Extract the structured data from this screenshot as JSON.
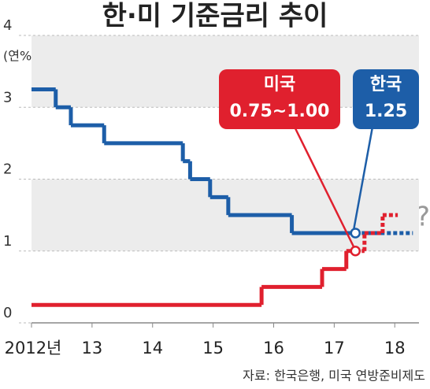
{
  "chart_data": {
    "type": "step",
    "title": "한·미 기준금리 추이",
    "y_unit": "(연%)",
    "source": "자료: 한국은행, 미국 연방준비제도",
    "annotation": "?",
    "xlim": [
      2012,
      2018.4
    ],
    "xticks": [
      {
        "value": 2012,
        "label": "2012년"
      },
      {
        "value": 2013,
        "label": "13"
      },
      {
        "value": 2014,
        "label": "14"
      },
      {
        "value": 2015,
        "label": "15"
      },
      {
        "value": 2016,
        "label": "16"
      },
      {
        "value": 2017,
        "label": "17"
      },
      {
        "value": 2018,
        "label": "18"
      }
    ],
    "ylim": [
      0,
      4
    ],
    "yticks": [
      0,
      1,
      2,
      3,
      4
    ],
    "grid": true,
    "series": [
      {
        "name": "한국",
        "color": "#1d5ea8",
        "callout": "1.25",
        "x": [
          2012,
          2012.4,
          2012.65,
          2013.2,
          2014.5,
          2014.62,
          2014.95,
          2015.25,
          2016.3,
          2017.35
        ],
        "values": [
          3.25,
          3,
          2.75,
          2.5,
          2.25,
          2,
          1.75,
          1.5,
          1.25,
          1.25
        ],
        "forecast_x": [
          2017.35,
          2018.3
        ],
        "forecast_values": [
          1.25,
          1.25
        ]
      },
      {
        "name": "미국",
        "color": "#e0202e",
        "callout": "0.75~1.00",
        "x": [
          2012,
          2015.8,
          2016.8,
          2017.2,
          2017.35
        ],
        "values": [
          0.25,
          0.5,
          0.75,
          1,
          1
        ],
        "forecast_x": [
          2017.35,
          2017.5,
          2017.8,
          2018.05
        ],
        "forecast_values": [
          1,
          1.25,
          1.5,
          1.5
        ]
      }
    ]
  }
}
